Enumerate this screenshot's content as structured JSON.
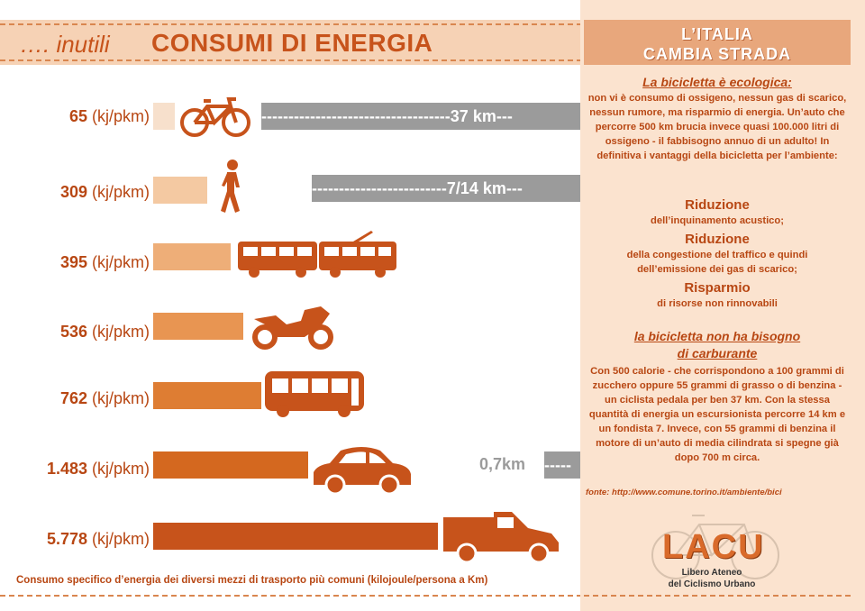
{
  "header": {
    "prefix": "…. inutili",
    "title": "CONSUMI DI ENERGIA"
  },
  "rows": [
    {
      "value": "65",
      "unit": " (kj/pkm)",
      "vehicle": "bicycle",
      "distance": "-----------------------------------37 km---"
    },
    {
      "value": "309",
      "unit": " (kj/pkm)",
      "vehicle": "pedestrian",
      "distance": "-------------------------7/14 km---"
    },
    {
      "value": "395",
      "unit": " (kj/pkm)",
      "vehicle": "tram"
    },
    {
      "value": "536",
      "unit": " (kj/pkm)",
      "vehicle": "motorcycle"
    },
    {
      "value": "762",
      "unit": " (kj/pkm)",
      "vehicle": "bus"
    },
    {
      "value": "1.483",
      "unit": " (kj/pkm)",
      "vehicle": "car",
      "distance_label": "0,7km",
      "distance_tail": "-----"
    },
    {
      "value": "5.778",
      "unit": " (kj/pkm)",
      "vehicle": "truck"
    }
  ],
  "colors": [
    "#f7e0cc",
    "#f4c9a2",
    "#eeae78",
    "#e89552",
    "#de7d33",
    "#d4681f",
    "#c7531b"
  ],
  "caption": "Consumo specifico d’energia dei diversi mezzi di trasporto più comuni (kilojoule/persona a Km)",
  "right": {
    "title_1": "L’ITALIA",
    "title_2": "CAMBIA STRADA",
    "heading_1": "La bicicletta è ecologica:",
    "para_1": "non vi è consumo di ossigeno, nessun gas di scarico, nessun rumore, ma risparmio di energia. Un’auto che percorre 500 km brucia invece quasi 100.000 litri di ossigeno - il fabbisogno annuo di un adulto! In definitiva i vantaggi della bicicletta per l’ambiente:",
    "big_1": "Riduzione",
    "small_1": "dell’inquinamento acustico;",
    "big_2": "Riduzione",
    "small_2": "della congestione del traffico e quindi dell’emissione dei gas di scarico;",
    "big_3": "Risparmio",
    "small_3": "di risorse non rinnovabili",
    "heading_2a": "la bicicletta non ha bisogno",
    "heading_2b": "di carburante",
    "para_2": "Con 500 calorie - che corrispondono a 100 grammi di zucchero oppure 55 grammi di grasso o di benzina - un ciclista pedala per ben 37 km. Con la stessa quantità di energia un escursionista percorre 14 km e un fondista 7. Invece, con 55 grammi di benzina il motore di un’auto di media cilindrata si spegne già dopo 700 m circa.",
    "source": "fonte:  http://www.comune.torino.it/ambiente/bici",
    "logo": "LACU",
    "logo_sub_1": "Libero Ateneo",
    "logo_sub_2": "del Ciclismo Urbano"
  }
}
